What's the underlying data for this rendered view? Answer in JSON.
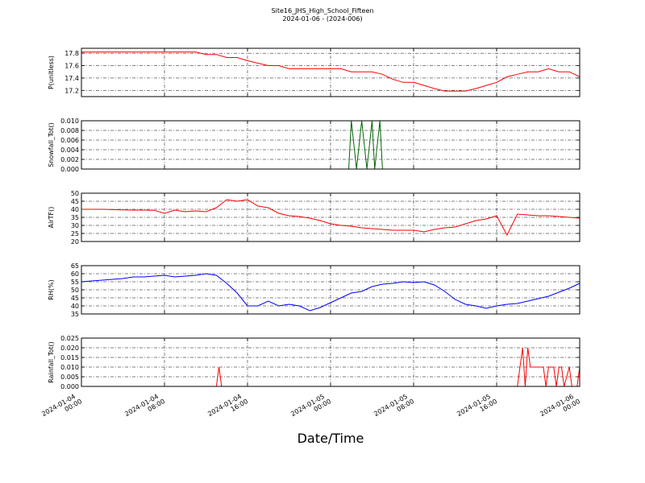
{
  "chart_data": {
    "type": "line",
    "title": "Site16_JHS_High_School_Fifteen",
    "subtitle": "2024-01-06 - (2024-006)",
    "xlabel": "Date/Time",
    "grid": true,
    "xlim": [
      "2024-01-04 00:00",
      "2024-01-06 00:00"
    ],
    "xticks": [
      "2024-01-04 00:00",
      "2024-01-04 08:00",
      "2024-01-04 16:00",
      "2024-01-05 00:00",
      "2024-01-05 08:00",
      "2024-01-05 16:00",
      "2024-01-06 00:00"
    ],
    "panels": [
      {
        "ylabel": "P(unitless)",
        "color": "#ff0000",
        "x": [
          "2024-01-04 00:00",
          "2024-01-04 01:00",
          "2024-01-04 02:00",
          "2024-01-04 03:00",
          "2024-01-04 04:00",
          "2024-01-04 05:00",
          "2024-01-04 06:00",
          "2024-01-04 07:00",
          "2024-01-04 08:00",
          "2024-01-04 09:00",
          "2024-01-04 10:00",
          "2024-01-04 11:00",
          "2024-01-04 12:00",
          "2024-01-04 13:00",
          "2024-01-04 14:00",
          "2024-01-04 15:00",
          "2024-01-04 16:00",
          "2024-01-04 17:00",
          "2024-01-04 18:00",
          "2024-01-04 19:00",
          "2024-01-04 20:00",
          "2024-01-04 21:00",
          "2024-01-04 22:00",
          "2024-01-04 23:00",
          "2024-01-05 00:00",
          "2024-01-05 01:00",
          "2024-01-05 02:00",
          "2024-01-05 03:00",
          "2024-01-05 04:00",
          "2024-01-05 05:00",
          "2024-01-05 06:00",
          "2024-01-05 07:00",
          "2024-01-05 08:00",
          "2024-01-05 09:00",
          "2024-01-05 10:00",
          "2024-01-05 11:00",
          "2024-01-05 12:00",
          "2024-01-05 13:00",
          "2024-01-05 14:00",
          "2024-01-05 15:00",
          "2024-01-05 16:00",
          "2024-01-05 17:00",
          "2024-01-05 18:00",
          "2024-01-05 19:00",
          "2024-01-05 20:00",
          "2024-01-05 21:00",
          "2024-01-05 22:00",
          "2024-01-05 23:00",
          "2024-01-06 00:00"
        ],
        "values": [
          17.82,
          17.82,
          17.82,
          17.82,
          17.82,
          17.82,
          17.82,
          17.82,
          17.82,
          17.82,
          17.82,
          17.82,
          17.78,
          17.78,
          17.73,
          17.73,
          17.68,
          17.64,
          17.6,
          17.6,
          17.55,
          17.55,
          17.55,
          17.55,
          17.55,
          17.55,
          17.5,
          17.5,
          17.5,
          17.46,
          17.38,
          17.33,
          17.33,
          17.28,
          17.23,
          17.19,
          17.19,
          17.19,
          17.23,
          17.28,
          17.33,
          17.42,
          17.46,
          17.5,
          17.5,
          17.55,
          17.5,
          17.5,
          17.42
        ],
        "ylim": [
          17.1,
          17.88
        ],
        "yticks": [
          17.2,
          17.4,
          17.6,
          17.8
        ]
      },
      {
        "ylabel": "Snowfall_Tot()",
        "color": "#006400",
        "x": [
          "2024-01-04 00:00",
          "2024-01-05 01:45",
          "2024-01-05 02:00",
          "2024-01-05 02:30",
          "2024-01-05 03:00",
          "2024-01-05 03:30",
          "2024-01-05 04:00",
          "2024-01-05 04:15",
          "2024-01-05 04:45",
          "2024-01-05 05:00",
          "2024-01-06 00:00"
        ],
        "values": [
          0,
          0,
          0.01,
          0,
          0.01,
          0,
          0.01,
          0,
          0.01,
          0,
          0
        ],
        "ylim": [
          0,
          0.01
        ],
        "yticks": [
          {
            "value": 0,
            "label": "0.000"
          },
          {
            "value": 0.002,
            "label": "0.002"
          },
          {
            "value": 0.004,
            "label": "0.004"
          },
          {
            "value": 0.006,
            "label": "0.006"
          },
          {
            "value": 0.008,
            "label": "0.008"
          },
          {
            "value": 0.01,
            "label": "0.010"
          }
        ]
      },
      {
        "ylabel": "AirTF()",
        "color": "#ff0000",
        "x": [
          "2024-01-04 00:00",
          "2024-01-04 01:00",
          "2024-01-04 02:00",
          "2024-01-04 03:00",
          "2024-01-04 04:00",
          "2024-01-04 05:00",
          "2024-01-04 06:00",
          "2024-01-04 07:00",
          "2024-01-04 08:00",
          "2024-01-04 09:00",
          "2024-01-04 10:00",
          "2024-01-04 11:00",
          "2024-01-04 12:00",
          "2024-01-04 13:00",
          "2024-01-04 14:00",
          "2024-01-04 15:00",
          "2024-01-04 16:00",
          "2024-01-04 17:00",
          "2024-01-04 18:00",
          "2024-01-04 19:00",
          "2024-01-04 20:00",
          "2024-01-04 21:00",
          "2024-01-04 22:00",
          "2024-01-04 23:00",
          "2024-01-05 00:00",
          "2024-01-05 01:00",
          "2024-01-05 02:00",
          "2024-01-05 03:00",
          "2024-01-05 04:00",
          "2024-01-05 05:00",
          "2024-01-05 06:00",
          "2024-01-05 07:00",
          "2024-01-05 08:00",
          "2024-01-05 09:00",
          "2024-01-05 10:00",
          "2024-01-05 11:00",
          "2024-01-05 12:00",
          "2024-01-05 13:00",
          "2024-01-05 14:00",
          "2024-01-05 15:00",
          "2024-01-05 16:00",
          "2024-01-05 17:00",
          "2024-01-05 18:00",
          "2024-01-05 19:00",
          "2024-01-05 20:00",
          "2024-01-05 21:00",
          "2024-01-05 22:00",
          "2024-01-05 23:00",
          "2024-01-06 00:00"
        ],
        "values": [
          40,
          40,
          40,
          39.8,
          39.6,
          39.5,
          39.5,
          39.4,
          37.5,
          39.5,
          38.5,
          39,
          38.5,
          41,
          46,
          45,
          46,
          42,
          41,
          37.5,
          36,
          35.5,
          34.5,
          33,
          31,
          30,
          29.5,
          28.5,
          28,
          27.5,
          27,
          27,
          27,
          26,
          27.5,
          28.5,
          29,
          31,
          33,
          34,
          36,
          24,
          37,
          36.5,
          36,
          36,
          35.5,
          35,
          34.5
        ],
        "ylim": [
          20,
          50
        ],
        "yticks": [
          20,
          25,
          30,
          35,
          40,
          45,
          50
        ]
      },
      {
        "ylabel": "RH(%)",
        "color": "#0000ff",
        "x": [
          "2024-01-04 00:00",
          "2024-01-04 01:00",
          "2024-01-04 02:00",
          "2024-01-04 03:00",
          "2024-01-04 04:00",
          "2024-01-04 05:00",
          "2024-01-04 06:00",
          "2024-01-04 07:00",
          "2024-01-04 08:00",
          "2024-01-04 09:00",
          "2024-01-04 10:00",
          "2024-01-04 11:00",
          "2024-01-04 12:00",
          "2024-01-04 13:00",
          "2024-01-04 14:00",
          "2024-01-04 15:00",
          "2024-01-04 16:00",
          "2024-01-04 17:00",
          "2024-01-04 18:00",
          "2024-01-04 19:00",
          "2024-01-04 20:00",
          "2024-01-04 21:00",
          "2024-01-04 22:00",
          "2024-01-04 23:00",
          "2024-01-05 00:00",
          "2024-01-05 01:00",
          "2024-01-05 02:00",
          "2024-01-05 03:00",
          "2024-01-05 04:00",
          "2024-01-05 05:00",
          "2024-01-05 06:00",
          "2024-01-05 07:00",
          "2024-01-05 08:00",
          "2024-01-05 09:00",
          "2024-01-05 10:00",
          "2024-01-05 11:00",
          "2024-01-05 12:00",
          "2024-01-05 13:00",
          "2024-01-05 14:00",
          "2024-01-05 15:00",
          "2024-01-05 16:00",
          "2024-01-05 17:00",
          "2024-01-05 18:00",
          "2024-01-05 19:00",
          "2024-01-05 20:00",
          "2024-01-05 21:00",
          "2024-01-05 22:00",
          "2024-01-05 23:00",
          "2024-01-06 00:00"
        ],
        "values": [
          55,
          55.5,
          56,
          56.5,
          57,
          58,
          58,
          58.5,
          59,
          58,
          58.5,
          59,
          60,
          59,
          54,
          48,
          40,
          40,
          43,
          40,
          41,
          40,
          37,
          39,
          42,
          45,
          48,
          49,
          52,
          53.5,
          54,
          55,
          54.5,
          55,
          53,
          49,
          44,
          41,
          40,
          38.5,
          40,
          41,
          41.5,
          43,
          44.5,
          46,
          48.5,
          51,
          54
        ],
        "ylim": [
          35,
          65
        ],
        "yticks": [
          35,
          40,
          45,
          50,
          55,
          60,
          65
        ]
      },
      {
        "ylabel": "Rainfall_Tot()",
        "color": "#ff0000",
        "x": [
          "2024-01-04 00:00",
          "2024-01-04 13:00",
          "2024-01-04 13:15",
          "2024-01-04 13:30",
          "2024-01-05 18:00",
          "2024-01-05 18:30",
          "2024-01-05 18:45",
          "2024-01-05 19:00",
          "2024-01-05 19:15",
          "2024-01-05 20:30",
          "2024-01-05 20:45",
          "2024-01-05 21:00",
          "2024-01-05 21:30",
          "2024-01-05 21:45",
          "2024-01-05 22:00",
          "2024-01-05 22:15",
          "2024-01-05 22:30",
          "2024-01-05 23:00",
          "2024-01-05 23:15",
          "2024-01-05 23:45",
          "2024-01-06 00:00"
        ],
        "values": [
          0,
          0,
          0.01,
          0,
          0,
          0.02,
          0,
          0.02,
          0.01,
          0.01,
          0,
          0.01,
          0.01,
          0,
          0.01,
          0.01,
          0,
          0.01,
          0,
          0,
          0.01
        ],
        "ylim": [
          0,
          0.025
        ],
        "yticks": [
          {
            "value": 0,
            "label": "0.000"
          },
          {
            "value": 0.005,
            "label": "0.005"
          },
          {
            "value": 0.01,
            "label": "0.010"
          },
          {
            "value": 0.015,
            "label": "0.015"
          },
          {
            "value": 0.02,
            "label": "0.020"
          },
          {
            "value": 0.025,
            "label": "0.025"
          }
        ]
      }
    ]
  }
}
